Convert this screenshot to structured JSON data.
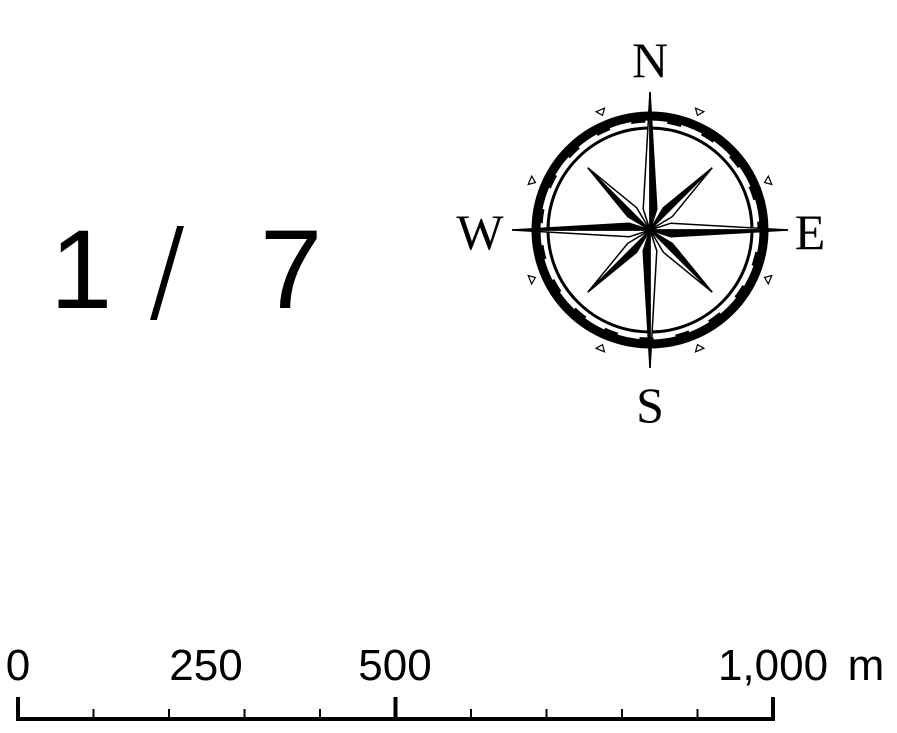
{
  "page_indicator": {
    "current": "1",
    "separator": "/",
    "total": "7"
  },
  "compass": {
    "north": "N",
    "south": "S",
    "east": "E",
    "west": "W"
  },
  "scale_bar": {
    "labels": [
      "0",
      "250",
      "500",
      "1,000"
    ],
    "unit": "m",
    "max_distance": 1000,
    "major_divisions": [
      0,
      500,
      1000
    ],
    "minor_divisions": [
      100,
      200,
      300,
      400,
      600,
      700,
      800,
      900
    ]
  },
  "colors": {
    "ink": "#000000",
    "background": "#ffffff"
  }
}
